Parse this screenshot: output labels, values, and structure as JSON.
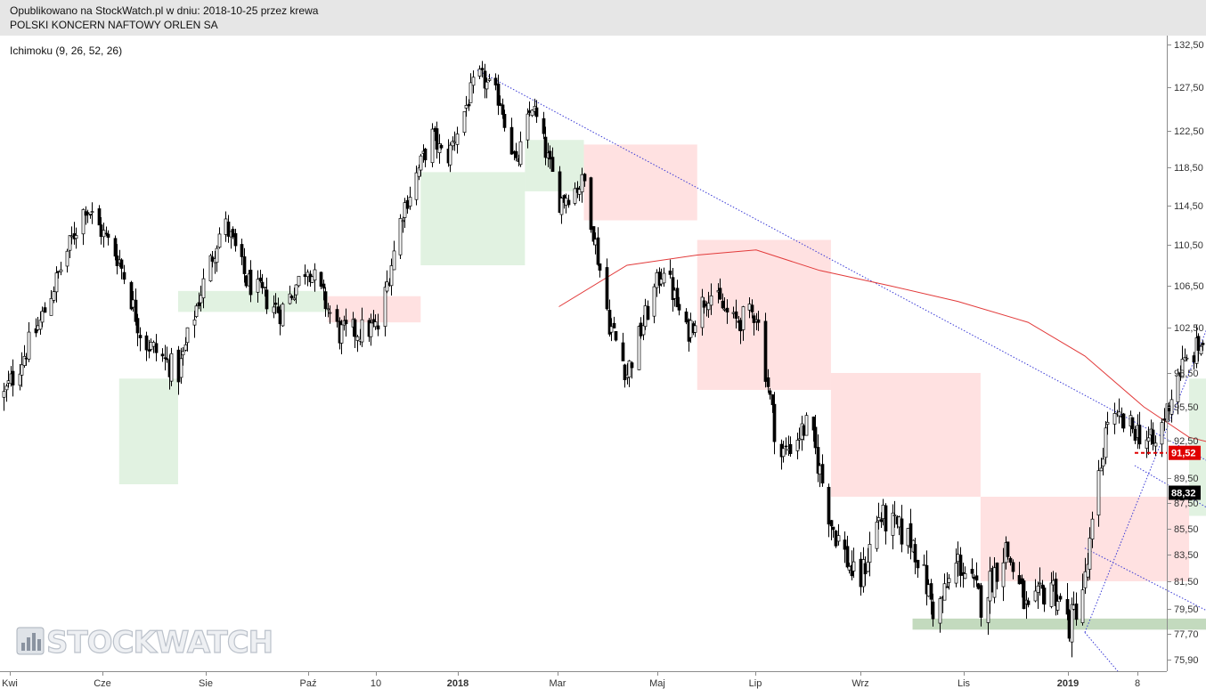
{
  "header": {
    "line1": "Opublikowano na StockWatch.pl w dniu: 2018-10-25 przez krewa",
    "line2": "POLSKI KONCERN NAFTOWY ORLEN SA"
  },
  "indicator_label": "Ichimoku (9, 26, 52, 26)",
  "watermark": "STOCKWATCH",
  "chart_data": {
    "type": "candlestick",
    "title": "POLSKI KONCERN NAFTOWY ORLEN SA",
    "y_axis": {
      "ticks": [
        "132,50",
        "127,50",
        "122,50",
        "118,50",
        "114,50",
        "110,50",
        "106,50",
        "102,50",
        "98,50",
        "95,50",
        "92,50",
        "89,50",
        "87,50",
        "85,50",
        "83,50",
        "81,50",
        "79,50",
        "77,70",
        "75,90"
      ],
      "ylim": [
        75.0,
        133.0
      ],
      "side": "right"
    },
    "x_axis": {
      "ticks": [
        {
          "label": "Kwi",
          "bold": false
        },
        {
          "label": "Cze",
          "bold": false
        },
        {
          "label": "Sie",
          "bold": false
        },
        {
          "label": "Paź",
          "bold": false
        },
        {
          "label": "10",
          "bold": false
        },
        {
          "label": "2018",
          "bold": true
        },
        {
          "label": "Mar",
          "bold": false
        },
        {
          "label": "Maj",
          "bold": false
        },
        {
          "label": "Lip",
          "bold": false
        },
        {
          "label": "Wrz",
          "bold": false
        },
        {
          "label": "Lis",
          "bold": false
        },
        {
          "label": "2019",
          "bold": true
        },
        {
          "label": "8",
          "bold": false
        }
      ]
    },
    "price_path": [
      [
        "2017-03-20",
        96.5
      ],
      [
        "2017-04-05",
        103.0
      ],
      [
        "2017-04-25",
        114.5
      ],
      [
        "2017-05-10",
        109.0
      ],
      [
        "2017-05-20",
        101.5
      ],
      [
        "2017-06-05",
        98.5
      ],
      [
        "2017-06-15",
        106.0
      ],
      [
        "2017-06-25",
        113.0
      ],
      [
        "2017-07-05",
        107.0
      ],
      [
        "2017-07-20",
        104.0
      ],
      [
        "2017-08-01",
        108.5
      ],
      [
        "2017-08-15",
        102.0
      ],
      [
        "2017-09-01",
        102.5
      ],
      [
        "2017-09-12",
        114.0
      ],
      [
        "2017-09-25",
        122.0
      ],
      [
        "2017-10-01",
        119.0
      ],
      [
        "2017-10-08",
        124.0
      ],
      [
        "2017-10-15",
        129.0
      ],
      [
        "2017-10-25",
        126.0
      ],
      [
        "2017-11-01",
        118.5
      ],
      [
        "2017-11-08",
        125.5
      ],
      [
        "2017-11-20",
        115.0
      ],
      [
        "2017-12-01",
        117.0
      ],
      [
        "2017-12-12",
        103.0
      ],
      [
        "2017-12-20",
        98.5
      ],
      [
        "2018-01-05",
        108.5
      ],
      [
        "2018-01-15",
        102.0
      ],
      [
        "2018-01-25",
        106.0
      ],
      [
        "2018-02-05",
        103.0
      ],
      [
        "2018-02-15",
        104.0
      ],
      [
        "2018-02-25",
        91.0
      ],
      [
        "2018-03-10",
        94.0
      ],
      [
        "2018-03-20",
        86.0
      ],
      [
        "2018-04-01",
        81.0
      ],
      [
        "2018-04-10",
        86.5
      ],
      [
        "2018-04-25",
        84.5
      ],
      [
        "2018-05-05",
        79.0
      ],
      [
        "2018-05-15",
        83.0
      ],
      [
        "2018-05-25",
        80.0
      ],
      [
        "2018-06-05",
        84.0
      ],
      [
        "2018-06-15",
        79.0
      ],
      [
        "2018-06-25",
        81.5
      ],
      [
        "2018-07-03",
        78.3
      ],
      [
        "2018-07-10",
        81.5
      ],
      [
        "2018-07-20",
        94.5
      ],
      [
        "2018-08-01",
        93.5
      ],
      [
        "2018-08-10",
        92.0
      ],
      [
        "2018-08-20",
        98.5
      ],
      [
        "2018-09-01",
        101.5
      ],
      [
        "2018-09-10",
        105.5
      ],
      [
        "2018-09-18",
        99.0
      ],
      [
        "2018-09-25",
        103.5
      ],
      [
        "2018-10-05",
        97.5
      ],
      [
        "2018-10-12",
        93.0
      ],
      [
        "2018-10-18",
        91.5
      ],
      [
        "2018-10-25",
        88.32
      ]
    ],
    "moving_average_red": [
      [
        "2017-11-20",
        104.5
      ],
      [
        "2017-12-20",
        108.5
      ],
      [
        "2018-01-20",
        109.5
      ],
      [
        "2018-02-15",
        110.0
      ],
      [
        "2018-03-15",
        108.0
      ],
      [
        "2018-04-15",
        106.5
      ],
      [
        "2018-05-15",
        105.0
      ],
      [
        "2018-06-15",
        103.0
      ],
      [
        "2018-07-10",
        100.0
      ],
      [
        "2018-08-05",
        95.5
      ],
      [
        "2018-08-25",
        92.8
      ],
      [
        "2018-09-20",
        91.6
      ],
      [
        "2018-10-18",
        91.0
      ],
      [
        "2018-10-25",
        90.6
      ]
    ],
    "ichimoku_cloud": [
      {
        "color": "green",
        "from": "2017-05-10",
        "to": "2017-06-05",
        "bottom": 89.0,
        "top": 98.0
      },
      {
        "color": "green",
        "from": "2017-06-05",
        "to": "2017-08-10",
        "bottom": 104.0,
        "top": 106.0
      },
      {
        "color": "red",
        "from": "2017-08-10",
        "to": "2017-09-20",
        "bottom": 103.0,
        "top": 105.5
      },
      {
        "color": "green",
        "from": "2017-09-20",
        "to": "2017-11-05",
        "bottom": 108.5,
        "top": 118.0
      },
      {
        "color": "green",
        "from": "2017-11-05",
        "to": "2017-12-01",
        "bottom": 116.0,
        "top": 121.5
      },
      {
        "color": "red",
        "from": "2017-12-01",
        "to": "2018-01-20",
        "bottom": 113.0,
        "top": 121.0
      },
      {
        "color": "red",
        "from": "2018-01-20",
        "to": "2018-03-20",
        "bottom": 97.0,
        "top": 111.0
      },
      {
        "color": "red",
        "from": "2018-03-20",
        "to": "2018-05-25",
        "bottom": 88.0,
        "top": 98.5
      },
      {
        "color": "red",
        "from": "2018-05-25",
        "to": "2018-08-25",
        "bottom": 81.5,
        "top": 88.0
      },
      {
        "color": "green",
        "from": "2018-08-25",
        "to": "2018-10-25",
        "bottom": 86.5,
        "top": 98.0
      },
      {
        "color": "green",
        "from": "2018-10-25",
        "to": "2018-11-20",
        "bottom": 97.0,
        "top": 101.5
      },
      {
        "color": "red",
        "from": "2018-11-20",
        "to": "2018-12-05",
        "bottom": 96.5,
        "top": 98.5
      }
    ],
    "trend_lines_blue_dotted": [
      {
        "from": [
          "2017-10-15",
          129.5
        ],
        "to": [
          "2019-01-25",
          77.5
        ]
      },
      {
        "from": [
          "2018-08-01",
          90.5
        ],
        "to": [
          "2019-01-05",
          75.0
        ]
      },
      {
        "from": [
          "2018-09-25",
          98.0
        ],
        "to": [
          "2019-01-25",
          79.0
        ]
      },
      {
        "from": [
          "2018-07-10",
          77.8
        ],
        "to": [
          "2018-09-10",
          106.8
        ]
      },
      {
        "from": [
          "2018-09-10",
          106.8
        ],
        "to": [
          "2019-02-15",
          86.0
        ]
      },
      {
        "from": [
          "2018-07-10",
          77.8
        ],
        "to": [
          "2018-07-25",
          75.0
        ]
      },
      {
        "from": [
          "2018-07-10",
          84.0
        ],
        "to": [
          "2018-10-25",
          75.0
        ]
      }
    ],
    "support_zone_green": {
      "from": "2018-04-25",
      "to": "2019-01-30",
      "low": 78.0,
      "high": 78.8
    },
    "resistance_line_red_dashed": {
      "from": "2018-08-01",
      "to": "2019-02-20",
      "value": 91.52
    },
    "price_labels": [
      {
        "value": "91,52",
        "color": "#e00000"
      },
      {
        "value": "88,32",
        "color": "#000000"
      }
    ],
    "last_close": 88.32,
    "grid": false,
    "legend": "none"
  }
}
